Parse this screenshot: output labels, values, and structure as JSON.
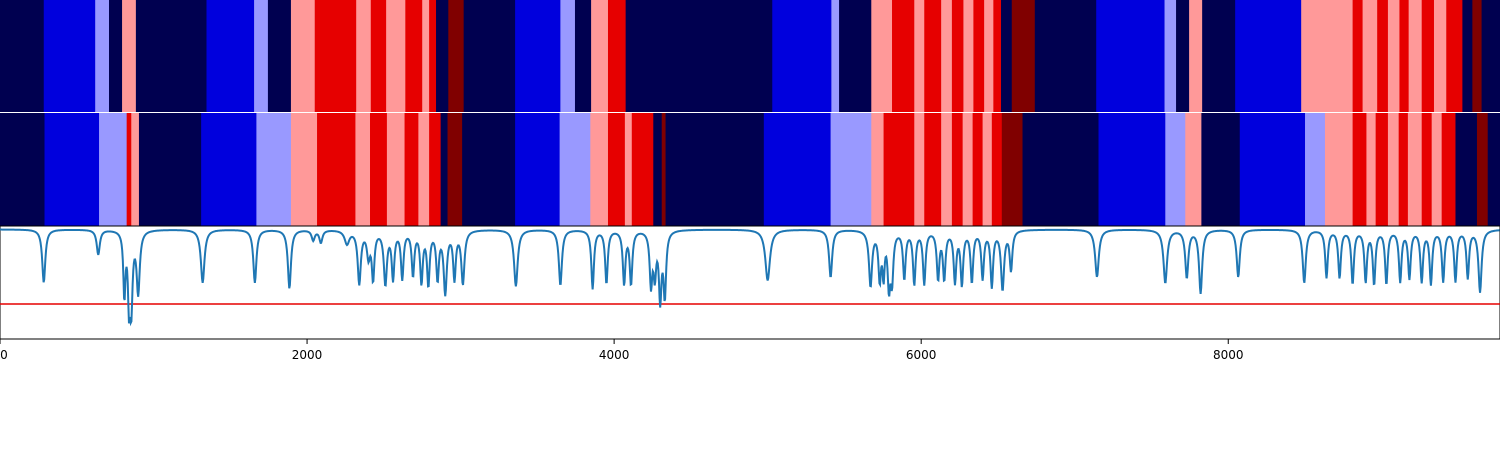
{
  "chart_data": [
    {
      "type": "heatmap",
      "name": "state-track-top",
      "x_range": [
        0,
        9770
      ],
      "colors": {
        "0": "#000050",
        "1": "#0000DD",
        "2": "#9999FF",
        "3": "#FF9999",
        "4": "#E60000",
        "5": "#800000"
      },
      "segments": [
        [
          0,
          285,
          0
        ],
        [
          285,
          620,
          1
        ],
        [
          620,
          710,
          2
        ],
        [
          710,
          795,
          0
        ],
        [
          795,
          885,
          3
        ],
        [
          885,
          1345,
          0
        ],
        [
          1345,
          1655,
          1
        ],
        [
          1655,
          1745,
          2
        ],
        [
          1745,
          1895,
          0
        ],
        [
          1895,
          2050,
          3
        ],
        [
          2050,
          2320,
          4
        ],
        [
          2320,
          2415,
          3
        ],
        [
          2415,
          2515,
          4
        ],
        [
          2515,
          2640,
          3
        ],
        [
          2640,
          2750,
          4
        ],
        [
          2750,
          2795,
          3
        ],
        [
          2795,
          2840,
          4
        ],
        [
          2840,
          2920,
          0
        ],
        [
          2920,
          3020,
          5
        ],
        [
          3020,
          3355,
          0
        ],
        [
          3355,
          3650,
          1
        ],
        [
          3650,
          3745,
          2
        ],
        [
          3745,
          3850,
          0
        ],
        [
          3850,
          3960,
          3
        ],
        [
          3960,
          4075,
          4
        ],
        [
          4075,
          5030,
          0
        ],
        [
          5030,
          5415,
          1
        ],
        [
          5415,
          5465,
          2
        ],
        [
          5465,
          5675,
          0
        ],
        [
          5675,
          5810,
          3
        ],
        [
          5810,
          5955,
          4
        ],
        [
          5955,
          6020,
          3
        ],
        [
          6020,
          6130,
          4
        ],
        [
          6130,
          6200,
          3
        ],
        [
          6200,
          6275,
          4
        ],
        [
          6275,
          6340,
          3
        ],
        [
          6340,
          6410,
          4
        ],
        [
          6410,
          6470,
          3
        ],
        [
          6470,
          6520,
          4
        ],
        [
          6520,
          6590,
          0
        ],
        [
          6590,
          6740,
          5
        ],
        [
          6740,
          7140,
          0
        ],
        [
          7140,
          7585,
          1
        ],
        [
          7585,
          7660,
          2
        ],
        [
          7660,
          7745,
          0
        ],
        [
          7745,
          7830,
          3
        ],
        [
          7830,
          8045,
          0
        ],
        [
          8045,
          8475,
          1
        ],
        [
          8475,
          8625,
          3
        ],
        [
          8625,
          8810,
          3
        ],
        [
          8810,
          8875,
          4
        ],
        [
          8875,
          8970,
          3
        ],
        [
          8970,
          9040,
          4
        ],
        [
          9040,
          9115,
          3
        ],
        [
          9115,
          9175,
          4
        ],
        [
          9175,
          9260,
          3
        ],
        [
          9260,
          9340,
          4
        ],
        [
          9340,
          9420,
          3
        ],
        [
          9420,
          9525,
          4
        ],
        [
          9525,
          9590,
          0
        ],
        [
          9590,
          9650,
          5
        ],
        [
          9650,
          9770,
          0
        ]
      ]
    },
    {
      "type": "heatmap",
      "name": "state-track-bottom",
      "x_range": [
        0,
        9770
      ],
      "segments": [
        [
          0,
          290,
          0
        ],
        [
          290,
          645,
          1
        ],
        [
          645,
          825,
          2
        ],
        [
          825,
          855,
          4
        ],
        [
          855,
          905,
          3
        ],
        [
          905,
          1310,
          0
        ],
        [
          1310,
          1670,
          1
        ],
        [
          1670,
          1895,
          2
        ],
        [
          1895,
          2065,
          3
        ],
        [
          2065,
          2315,
          4
        ],
        [
          2315,
          2410,
          3
        ],
        [
          2410,
          2520,
          4
        ],
        [
          2520,
          2635,
          3
        ],
        [
          2635,
          2725,
          4
        ],
        [
          2725,
          2795,
          3
        ],
        [
          2795,
          2870,
          4
        ],
        [
          2870,
          2915,
          0
        ],
        [
          2915,
          3010,
          5
        ],
        [
          3010,
          3355,
          0
        ],
        [
          3355,
          3645,
          1
        ],
        [
          3645,
          3845,
          2
        ],
        [
          3845,
          3960,
          3
        ],
        [
          3960,
          4070,
          4
        ],
        [
          4070,
          4115,
          3
        ],
        [
          4115,
          4255,
          4
        ],
        [
          4255,
          4310,
          0
        ],
        [
          4310,
          4335,
          5
        ],
        [
          4335,
          4975,
          0
        ],
        [
          4975,
          5410,
          1
        ],
        [
          5410,
          5675,
          2
        ],
        [
          5675,
          5755,
          3
        ],
        [
          5755,
          5955,
          4
        ],
        [
          5955,
          6020,
          3
        ],
        [
          6020,
          6130,
          4
        ],
        [
          6130,
          6200,
          3
        ],
        [
          6200,
          6270,
          4
        ],
        [
          6270,
          6335,
          3
        ],
        [
          6335,
          6400,
          4
        ],
        [
          6400,
          6460,
          3
        ],
        [
          6460,
          6525,
          4
        ],
        [
          6525,
          6660,
          5
        ],
        [
          6660,
          7155,
          0
        ],
        [
          7155,
          7590,
          1
        ],
        [
          7590,
          7720,
          2
        ],
        [
          7720,
          7825,
          3
        ],
        [
          7825,
          8075,
          0
        ],
        [
          8075,
          8500,
          1
        ],
        [
          8500,
          8630,
          2
        ],
        [
          8630,
          8810,
          3
        ],
        [
          8810,
          8900,
          4
        ],
        [
          8900,
          8960,
          3
        ],
        [
          8960,
          9040,
          4
        ],
        [
          9040,
          9110,
          3
        ],
        [
          9110,
          9170,
          4
        ],
        [
          9170,
          9260,
          3
        ],
        [
          9260,
          9325,
          4
        ],
        [
          9325,
          9390,
          3
        ],
        [
          9390,
          9480,
          4
        ],
        [
          9480,
          9555,
          0
        ],
        [
          9555,
          9620,
          0
        ],
        [
          9620,
          9690,
          5
        ],
        [
          9690,
          9770,
          0
        ]
      ]
    },
    {
      "type": "line",
      "name": "signal-panel",
      "x_range": [
        0,
        9770
      ],
      "ylim": [
        0,
        1
      ],
      "baseline": 0.97,
      "series_color": "#1f77b4",
      "threshold": 0.31,
      "threshold_color": "#e60000",
      "dips": [
        [
          285,
          0.5,
          12
        ],
        [
          640,
          0.75,
          12
        ],
        [
          810,
          0.4,
          8
        ],
        [
          840,
          0.4,
          8
        ],
        [
          855,
          0.32,
          10
        ],
        [
          900,
          0.42,
          12
        ],
        [
          1320,
          0.5,
          14
        ],
        [
          1660,
          0.5,
          12
        ],
        [
          1885,
          0.45,
          12
        ],
        [
          2040,
          0.88,
          12
        ],
        [
          2090,
          0.86,
          12
        ],
        [
          2260,
          0.85,
          18
        ],
        [
          2340,
          0.5,
          12
        ],
        [
          2400,
          0.75,
          12
        ],
        [
          2430,
          0.55,
          10
        ],
        [
          2510,
          0.5,
          12
        ],
        [
          2560,
          0.55,
          10
        ],
        [
          2620,
          0.55,
          10
        ],
        [
          2690,
          0.58,
          10
        ],
        [
          2745,
          0.52,
          10
        ],
        [
          2790,
          0.5,
          10
        ],
        [
          2850,
          0.55,
          10
        ],
        [
          2900,
          0.42,
          12
        ],
        [
          2960,
          0.55,
          10
        ],
        [
          3015,
          0.5,
          12
        ],
        [
          3360,
          0.47,
          14
        ],
        [
          3650,
          0.48,
          12
        ],
        [
          3860,
          0.45,
          10
        ],
        [
          3950,
          0.5,
          10
        ],
        [
          4065,
          0.5,
          10
        ],
        [
          4110,
          0.5,
          10
        ],
        [
          4240,
          0.5,
          10
        ],
        [
          4265,
          0.6,
          10
        ],
        [
          4300,
          0.38,
          10
        ],
        [
          4330,
          0.4,
          10
        ],
        [
          5000,
          0.52,
          18
        ],
        [
          5410,
          0.55,
          12
        ],
        [
          5670,
          0.48,
          12
        ],
        [
          5730,
          0.55,
          10
        ],
        [
          5755,
          0.6,
          8
        ],
        [
          5790,
          0.5,
          10
        ],
        [
          5810,
          0.55,
          10
        ],
        [
          5890,
          0.55,
          10
        ],
        [
          5955,
          0.5,
          10
        ],
        [
          6020,
          0.5,
          10
        ],
        [
          6110,
          0.55,
          10
        ],
        [
          6150,
          0.55,
          10
        ],
        [
          6220,
          0.52,
          10
        ],
        [
          6265,
          0.5,
          10
        ],
        [
          6330,
          0.52,
          10
        ],
        [
          6400,
          0.55,
          10
        ],
        [
          6460,
          0.48,
          10
        ],
        [
          6530,
          0.45,
          12
        ],
        [
          6585,
          0.62,
          10
        ],
        [
          7145,
          0.55,
          14
        ],
        [
          7590,
          0.5,
          14
        ],
        [
          7730,
          0.55,
          12
        ],
        [
          7820,
          0.41,
          12
        ],
        [
          8065,
          0.55,
          12
        ],
        [
          8495,
          0.5,
          12
        ],
        [
          8640,
          0.55,
          10
        ],
        [
          8725,
          0.55,
          10
        ],
        [
          8810,
          0.5,
          10
        ],
        [
          8895,
          0.52,
          10
        ],
        [
          8950,
          0.5,
          10
        ],
        [
          9030,
          0.5,
          10
        ],
        [
          9120,
          0.52,
          10
        ],
        [
          9180,
          0.55,
          10
        ],
        [
          9260,
          0.52,
          10
        ],
        [
          9320,
          0.5,
          10
        ],
        [
          9400,
          0.52,
          10
        ],
        [
          9480,
          0.52,
          10
        ],
        [
          9560,
          0.55,
          10
        ],
        [
          9640,
          0.42,
          12
        ]
      ],
      "xticks": [
        {
          "value": 0,
          "label": "0"
        },
        {
          "value": 2000,
          "label": "2000"
        },
        {
          "value": 4000,
          "label": "4000"
        },
        {
          "value": 6000,
          "label": "6000"
        },
        {
          "value": 8000,
          "label": "8000"
        }
      ]
    }
  ]
}
